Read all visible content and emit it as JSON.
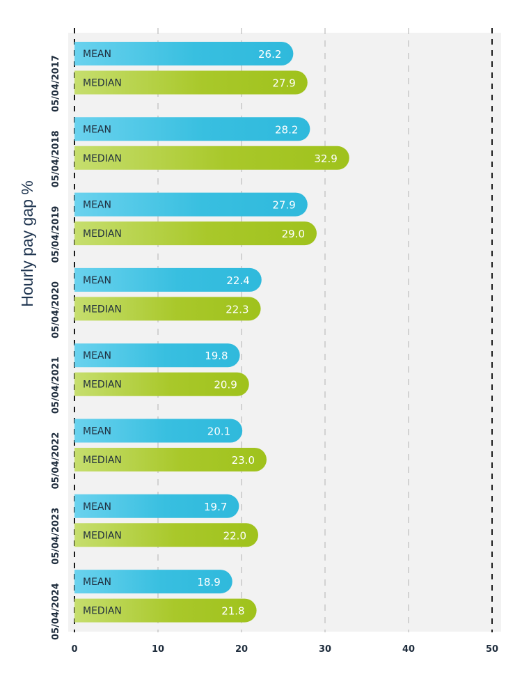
{
  "chart_data": {
    "type": "bar",
    "orientation": "horizontal",
    "ylabel": "Hourly pay gap %",
    "xlim": [
      0,
      50
    ],
    "xticks": [
      0,
      10,
      20,
      30,
      40,
      50
    ],
    "grid": true,
    "categories": [
      "05/04/2017",
      "05/04/2018",
      "05/04/2019",
      "05/04/2020",
      "05/04/2021",
      "05/04/2022",
      "05/04/2023",
      "05/04/2024"
    ],
    "series": [
      {
        "name": "MEAN",
        "color": "#38bfe0",
        "values": [
          26.2,
          28.2,
          27.9,
          22.4,
          19.8,
          20.1,
          19.7,
          18.9
        ],
        "labels": [
          "26.2",
          "28.2",
          "27.9",
          "22.4",
          "19.8",
          "20.1",
          "19.7",
          "18.9"
        ]
      },
      {
        "name": "MEDIAN",
        "color": "#a3c523",
        "values": [
          27.9,
          32.9,
          29.0,
          22.3,
          20.9,
          23.0,
          22.0,
          21.8
        ],
        "labels": [
          "27.9",
          "32.9",
          "29.0",
          "22.3",
          "20.9",
          "23.0",
          "22.0",
          "21.8"
        ]
      }
    ]
  }
}
